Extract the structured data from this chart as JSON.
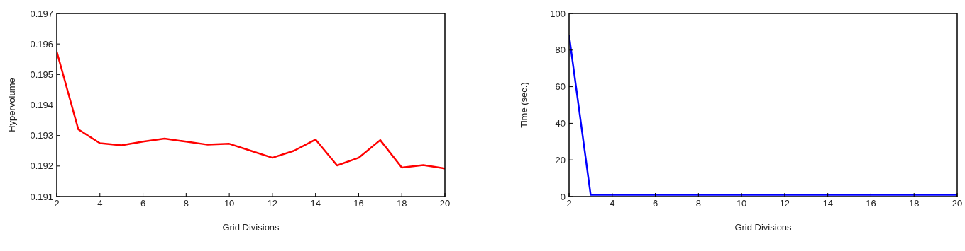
{
  "chart_data": [
    {
      "type": "line",
      "xlabel": "Grid Divisions",
      "ylabel": "Hypervolume",
      "x": [
        2,
        3,
        4,
        5,
        6,
        7,
        8,
        9,
        10,
        11,
        12,
        13,
        14,
        15,
        16,
        17,
        18,
        19,
        20
      ],
      "series": [
        {
          "color": "#ff0000",
          "values": [
            0.19575,
            0.1932,
            0.19275,
            0.19268,
            0.1928,
            0.1929,
            0.1928,
            0.1927,
            0.19273,
            0.1925,
            0.19227,
            0.1925,
            0.19287,
            0.19202,
            0.19227,
            0.19285,
            0.19195,
            0.19203,
            0.19192
          ]
        }
      ],
      "xlim": [
        2,
        20
      ],
      "xticks": [
        2,
        4,
        6,
        8,
        10,
        12,
        14,
        16,
        18,
        20
      ],
      "ylim": [
        0.191,
        0.197
      ],
      "yticks": [
        0.191,
        0.192,
        0.193,
        0.194,
        0.195,
        0.196,
        0.197
      ],
      "grid": false,
      "legend": false,
      "marker": "none",
      "line_style": "solid"
    },
    {
      "type": "line",
      "xlabel": "Grid Divisions",
      "ylabel": "Time (sec.)",
      "x": [
        2,
        3,
        4,
        5,
        6,
        7,
        8,
        9,
        10,
        11,
        12,
        13,
        14,
        15,
        16,
        17,
        18,
        19,
        20
      ],
      "series": [
        {
          "color": "#0000ff",
          "values": [
            88,
            1,
            1,
            1,
            1,
            1,
            1,
            1,
            1,
            1,
            1,
            1,
            1,
            1,
            1,
            1,
            1,
            1,
            1
          ]
        }
      ],
      "xlim": [
        2,
        20
      ],
      "xticks": [
        2,
        4,
        6,
        8,
        10,
        12,
        14,
        16,
        18,
        20
      ],
      "ylim": [
        0,
        100
      ],
      "yticks": [
        0,
        20,
        40,
        60,
        80,
        100
      ],
      "grid": false,
      "legend": false,
      "marker": "none",
      "line_style": "solid"
    }
  ]
}
